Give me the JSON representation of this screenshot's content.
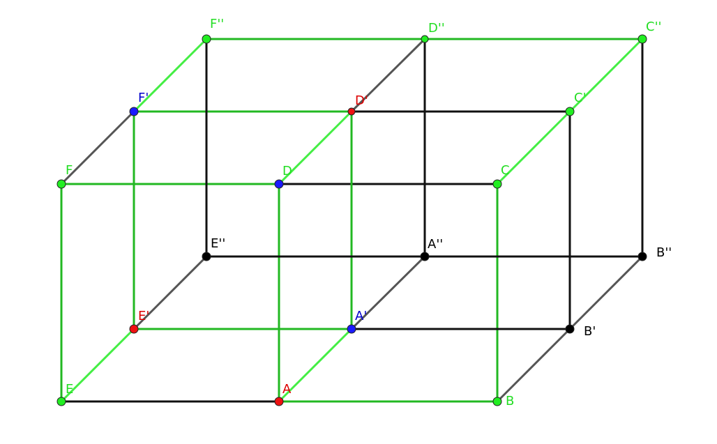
{
  "colors": {
    "green_edge": "#22b822",
    "light_green_edge": "#44ee44",
    "black_edge": "#111111",
    "gray_edge": "#555555",
    "point_green": "#22ee22",
    "point_blue": "#1a1aff",
    "point_red": "#ee1111",
    "point_black": "#000000",
    "label_green": "#22dd22",
    "label_blue": "#0000cc",
    "label_red": "#dd0000",
    "label_black": "#000000"
  },
  "points": {
    "A": {
      "label": "A",
      "color": "red",
      "label_color": "red"
    },
    "B": {
      "label": "B",
      "color": "green",
      "label_color": "green"
    },
    "C": {
      "label": "C",
      "color": "green",
      "label_color": "green"
    },
    "D": {
      "label": "D",
      "color": "blue",
      "label_color": "green"
    },
    "E": {
      "label": "E",
      "color": "green",
      "label_color": "green"
    },
    "F": {
      "label": "F",
      "color": "green",
      "label_color": "green"
    },
    "A1": {
      "label": "A'",
      "color": "blue",
      "label_color": "blue"
    },
    "B1": {
      "label": "B'",
      "color": "black",
      "label_color": "black"
    },
    "C1": {
      "label": "C'",
      "color": "green",
      "label_color": "green"
    },
    "D1": {
      "label": "D'",
      "color": "red",
      "label_color": "red"
    },
    "E1": {
      "label": "E'",
      "color": "red",
      "label_color": "red"
    },
    "F1": {
      "label": "F'",
      "color": "blue",
      "label_color": "blue"
    },
    "A2": {
      "label": "A''",
      "color": "black",
      "label_color": "black"
    },
    "B2": {
      "label": "B''",
      "color": "black",
      "label_color": "black"
    },
    "C2": {
      "label": "C''",
      "color": "green",
      "label_color": "green"
    },
    "D2": {
      "label": "D''",
      "color": "green",
      "label_color": "green"
    },
    "E2": {
      "label": "E''",
      "color": "black",
      "label_color": "black"
    },
    "F2": {
      "label": "F''",
      "color": "green",
      "label_color": "green"
    }
  },
  "edges": [
    {
      "from": "E",
      "to": "A",
      "style": "black"
    },
    {
      "from": "A",
      "to": "B",
      "style": "green"
    },
    {
      "from": "F",
      "to": "D",
      "style": "green"
    },
    {
      "from": "D",
      "to": "C",
      "style": "black"
    },
    {
      "from": "E",
      "to": "F",
      "style": "green"
    },
    {
      "from": "A",
      "to": "D",
      "style": "green"
    },
    {
      "from": "B",
      "to": "C",
      "style": "green"
    },
    {
      "from": "E1",
      "to": "A1",
      "style": "green"
    },
    {
      "from": "A1",
      "to": "B1",
      "style": "black"
    },
    {
      "from": "F1",
      "to": "D1",
      "style": "green"
    },
    {
      "from": "D1",
      "to": "C1",
      "style": "black"
    },
    {
      "from": "E1",
      "to": "F1",
      "style": "green"
    },
    {
      "from": "A1",
      "to": "D1",
      "style": "green"
    },
    {
      "from": "B1",
      "to": "C1",
      "style": "black"
    },
    {
      "from": "E2",
      "to": "A2",
      "style": "black"
    },
    {
      "from": "A2",
      "to": "B2",
      "style": "black"
    },
    {
      "from": "F2",
      "to": "D2",
      "style": "green"
    },
    {
      "from": "D2",
      "to": "C2",
      "style": "green"
    },
    {
      "from": "E2",
      "to": "F2",
      "style": "black"
    },
    {
      "from": "A2",
      "to": "D2",
      "style": "black"
    },
    {
      "from": "B2",
      "to": "C2",
      "style": "black"
    },
    {
      "from": "E",
      "to": "E1",
      "style": "lightgreen"
    },
    {
      "from": "E1",
      "to": "E2",
      "style": "gray"
    },
    {
      "from": "A",
      "to": "A1",
      "style": "lightgreen"
    },
    {
      "from": "A1",
      "to": "A2",
      "style": "gray"
    },
    {
      "from": "B",
      "to": "B1",
      "style": "gray"
    },
    {
      "from": "B1",
      "to": "B2",
      "style": "gray"
    },
    {
      "from": "F",
      "to": "F1",
      "style": "gray"
    },
    {
      "from": "F1",
      "to": "F2",
      "style": "lightgreen"
    },
    {
      "from": "D",
      "to": "D1",
      "style": "lightgreen"
    },
    {
      "from": "D1",
      "to": "D2",
      "style": "gray"
    },
    {
      "from": "C",
      "to": "C1",
      "style": "lightgreen"
    },
    {
      "from": "C1",
      "to": "C2",
      "style": "lightgreen"
    }
  ]
}
